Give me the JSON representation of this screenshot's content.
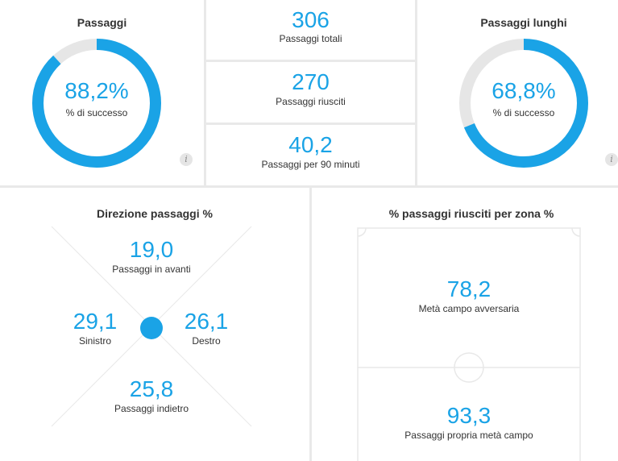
{
  "passaggi": {
    "title": "Passaggi",
    "percent": "88,2%",
    "percent_label": "% di successo",
    "fraction": 0.882
  },
  "totals": {
    "total_value": "306",
    "total_label": "Passaggi totali",
    "success_value": "270",
    "success_label": "Passaggi riusciti",
    "per90_value": "40,2",
    "per90_label": "Passaggi per 90 minuti"
  },
  "lunghi": {
    "title": "Passaggi lunghi",
    "percent": "68,8%",
    "percent_label": "% di successo",
    "fraction": 0.688
  },
  "info_icon": "i",
  "direzione": {
    "title": "Direzione passaggi %",
    "forward_value": "19,0",
    "forward_label": "Passaggi in avanti",
    "left_value": "29,1",
    "left_label": "Sinistro",
    "right_value": "26,1",
    "right_label": "Destro",
    "back_value": "25,8",
    "back_label": "Passaggi indietro"
  },
  "zona": {
    "title": "% passaggi riusciti per zona %",
    "opp_value": "78,2",
    "opp_label": "Metà campo avversaria",
    "own_value": "93,3",
    "own_label": "Passaggi propria metà campo"
  },
  "colors": {
    "accent": "#1aa3e6",
    "track": "#e6e6e6",
    "lines": "#e8e8e8"
  }
}
